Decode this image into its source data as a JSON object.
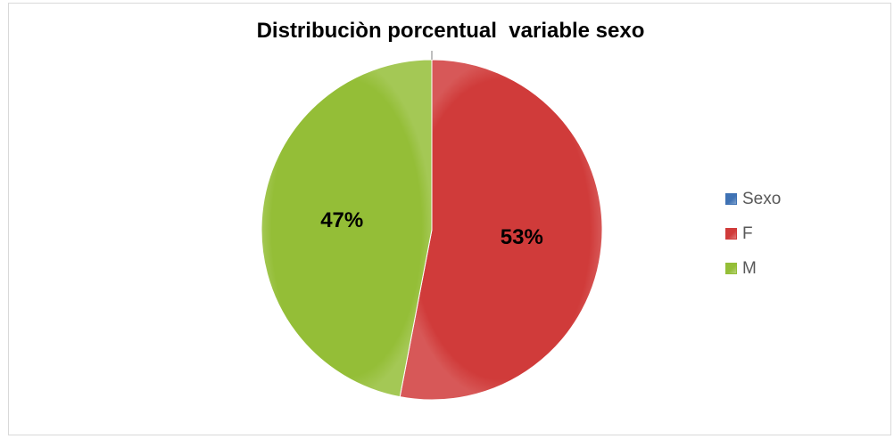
{
  "chart_data": {
    "type": "pie",
    "title": "Distribuciòn porcentual  variable sexo",
    "slices": [
      {
        "label": "F",
        "value": 53,
        "display": "53%",
        "color": "#d03b3a"
      },
      {
        "label": "M",
        "value": 47,
        "display": "47%",
        "color": "#94be37"
      }
    ],
    "legend": {
      "position": "right",
      "entries": [
        {
          "label": "Sexo",
          "color": "#3f72b4"
        },
        {
          "label": "F",
          "color": "#d03b3a"
        },
        {
          "label": "M",
          "color": "#94be37"
        }
      ]
    }
  }
}
